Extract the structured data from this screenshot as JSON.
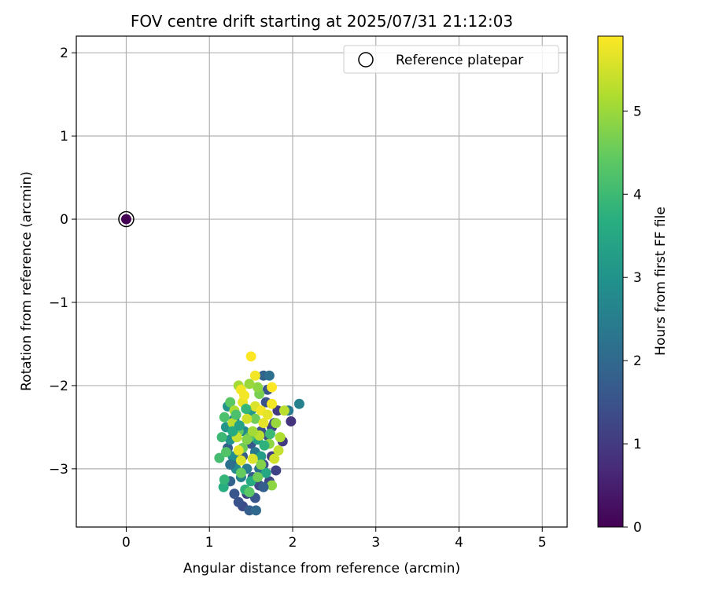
{
  "chart_data": {
    "type": "scatter",
    "title": "FOV centre drift starting at 2025/07/31 21:12:03",
    "xlabel": "Angular distance from reference (arcmin)",
    "ylabel": "Rotation from reference (arcmin)",
    "xlim": [
      -0.6,
      5.3
    ],
    "ylim": [
      -3.7,
      2.2
    ],
    "xticks": [
      0,
      1,
      2,
      3,
      4,
      5
    ],
    "yticks": [
      -3,
      -2,
      -1,
      0,
      1,
      2
    ],
    "grid": true,
    "legend": {
      "placement": "top-right",
      "entries": [
        "Reference platepar"
      ]
    },
    "colorbar": {
      "label": "Hours from first FF file",
      "min": 0,
      "max": 5.9,
      "ticks": [
        0,
        1,
        2,
        3,
        4,
        5
      ],
      "colormap": "viridis"
    },
    "reference_point": {
      "x": 0.0,
      "y": 0.0,
      "t": 0.0
    },
    "points": [
      [
        1.98,
        -2.43,
        0.9
      ],
      [
        1.88,
        -2.67,
        1.0
      ],
      [
        1.8,
        -3.02,
        1.2
      ],
      [
        1.75,
        -2.85,
        1.1
      ],
      [
        1.72,
        -3.15,
        1.3
      ],
      [
        1.65,
        -2.95,
        1.4
      ],
      [
        1.7,
        -2.6,
        1.5
      ],
      [
        1.6,
        -3.2,
        1.3
      ],
      [
        1.55,
        -3.35,
        1.6
      ],
      [
        1.52,
        -3.1,
        1.7
      ],
      [
        1.45,
        -3.3,
        1.2
      ],
      [
        1.4,
        -3.45,
        1.4
      ],
      [
        1.35,
        -3.4,
        1.5
      ],
      [
        1.3,
        -3.3,
        1.6
      ],
      [
        1.48,
        -3.5,
        1.8
      ],
      [
        1.56,
        -3.5,
        2.0
      ],
      [
        1.25,
        -3.15,
        1.9
      ],
      [
        1.3,
        -2.9,
        2.0
      ],
      [
        1.22,
        -2.75,
        1.8
      ],
      [
        1.4,
        -2.85,
        1.7
      ],
      [
        1.5,
        -2.7,
        1.6
      ],
      [
        1.62,
        -2.55,
        1.5
      ],
      [
        1.75,
        -2.5,
        1.2
      ],
      [
        1.82,
        -2.3,
        1.0
      ],
      [
        1.78,
        -2.45,
        1.3
      ],
      [
        1.68,
        -2.2,
        1.5
      ],
      [
        1.7,
        -2.05,
        1.6
      ],
      [
        1.65,
        -1.88,
        1.9
      ],
      [
        1.72,
        -1.88,
        2.2
      ],
      [
        1.95,
        -2.3,
        2.4
      ],
      [
        2.08,
        -2.22,
        2.6
      ],
      [
        1.6,
        -3.0,
        2.2
      ],
      [
        1.55,
        -2.8,
        2.4
      ],
      [
        1.45,
        -3.0,
        2.5
      ],
      [
        1.38,
        -3.1,
        2.6
      ],
      [
        1.32,
        -3.0,
        2.8
      ],
      [
        1.28,
        -2.85,
        2.9
      ],
      [
        1.25,
        -2.65,
        3.0
      ],
      [
        1.2,
        -2.5,
        3.1
      ],
      [
        1.22,
        -2.25,
        3.0
      ],
      [
        1.3,
        -2.4,
        2.7
      ],
      [
        1.42,
        -2.55,
        2.8
      ],
      [
        1.5,
        -2.3,
        3.2
      ],
      [
        1.58,
        -2.65,
        3.4
      ],
      [
        1.62,
        -2.85,
        3.3
      ],
      [
        1.68,
        -3.05,
        3.5
      ],
      [
        1.5,
        -3.15,
        3.6
      ],
      [
        1.43,
        -3.25,
        3.8
      ],
      [
        1.17,
        -3.22,
        3.7
      ],
      [
        1.18,
        -3.13,
        3.9
      ],
      [
        1.15,
        -2.62,
        4.0
      ],
      [
        1.18,
        -2.38,
        4.2
      ],
      [
        1.12,
        -2.87,
        4.1
      ],
      [
        1.2,
        -2.8,
        4.3
      ],
      [
        1.25,
        -2.2,
        4.4
      ],
      [
        1.35,
        -2.55,
        4.5
      ],
      [
        1.4,
        -2.75,
        4.6
      ],
      [
        1.48,
        -2.62,
        4.4
      ],
      [
        1.55,
        -2.4,
        4.6
      ],
      [
        1.6,
        -2.1,
        4.7
      ],
      [
        1.38,
        -3.05,
        4.5
      ],
      [
        1.48,
        -3.28,
        4.4
      ],
      [
        1.58,
        -3.1,
        4.6
      ],
      [
        1.62,
        -2.95,
        4.8
      ],
      [
        1.75,
        -3.2,
        4.9
      ],
      [
        1.72,
        -2.7,
        4.9
      ],
      [
        1.8,
        -2.45,
        5.0
      ],
      [
        1.85,
        -2.62,
        5.2
      ],
      [
        1.9,
        -2.3,
        5.3
      ],
      [
        1.83,
        -2.78,
        5.4
      ],
      [
        1.78,
        -2.88,
        5.5
      ],
      [
        1.58,
        -2.02,
        4.9
      ],
      [
        1.48,
        -1.98,
        5.0
      ],
      [
        1.35,
        -2.0,
        5.1
      ],
      [
        1.3,
        -2.3,
        5.2
      ],
      [
        1.28,
        -2.45,
        5.3
      ],
      [
        1.33,
        -2.62,
        5.4
      ],
      [
        1.38,
        -2.9,
        5.6
      ],
      [
        1.35,
        -2.78,
        5.7
      ],
      [
        1.52,
        -2.88,
        5.6
      ],
      [
        1.45,
        -2.4,
        5.5
      ],
      [
        1.4,
        -2.2,
        5.7
      ],
      [
        1.42,
        -2.12,
        5.8
      ],
      [
        1.55,
        -2.25,
        5.6
      ],
      [
        1.62,
        -2.3,
        5.8
      ],
      [
        1.7,
        -2.35,
        5.7
      ],
      [
        1.75,
        -2.22,
        5.8
      ],
      [
        1.75,
        -2.02,
        5.9
      ],
      [
        1.55,
        -1.88,
        5.8
      ],
      [
        1.5,
        -1.65,
        5.9
      ],
      [
        1.38,
        -2.05,
        5.8
      ],
      [
        1.65,
        -2.45,
        5.7
      ],
      [
        1.6,
        -2.6,
        5.3
      ],
      [
        1.52,
        -2.55,
        5.1
      ],
      [
        1.45,
        -2.65,
        4.8
      ],
      [
        1.32,
        -2.35,
        4.2
      ],
      [
        1.28,
        -2.55,
        3.6
      ],
      [
        1.36,
        -2.48,
        3.4
      ],
      [
        1.44,
        -2.28,
        3.9
      ],
      [
        1.66,
        -2.72,
        3.8
      ],
      [
        1.73,
        -2.58,
        4.0
      ],
      [
        1.25,
        -2.95,
        2.2
      ],
      [
        1.65,
        -3.22,
        1.8
      ]
    ]
  }
}
